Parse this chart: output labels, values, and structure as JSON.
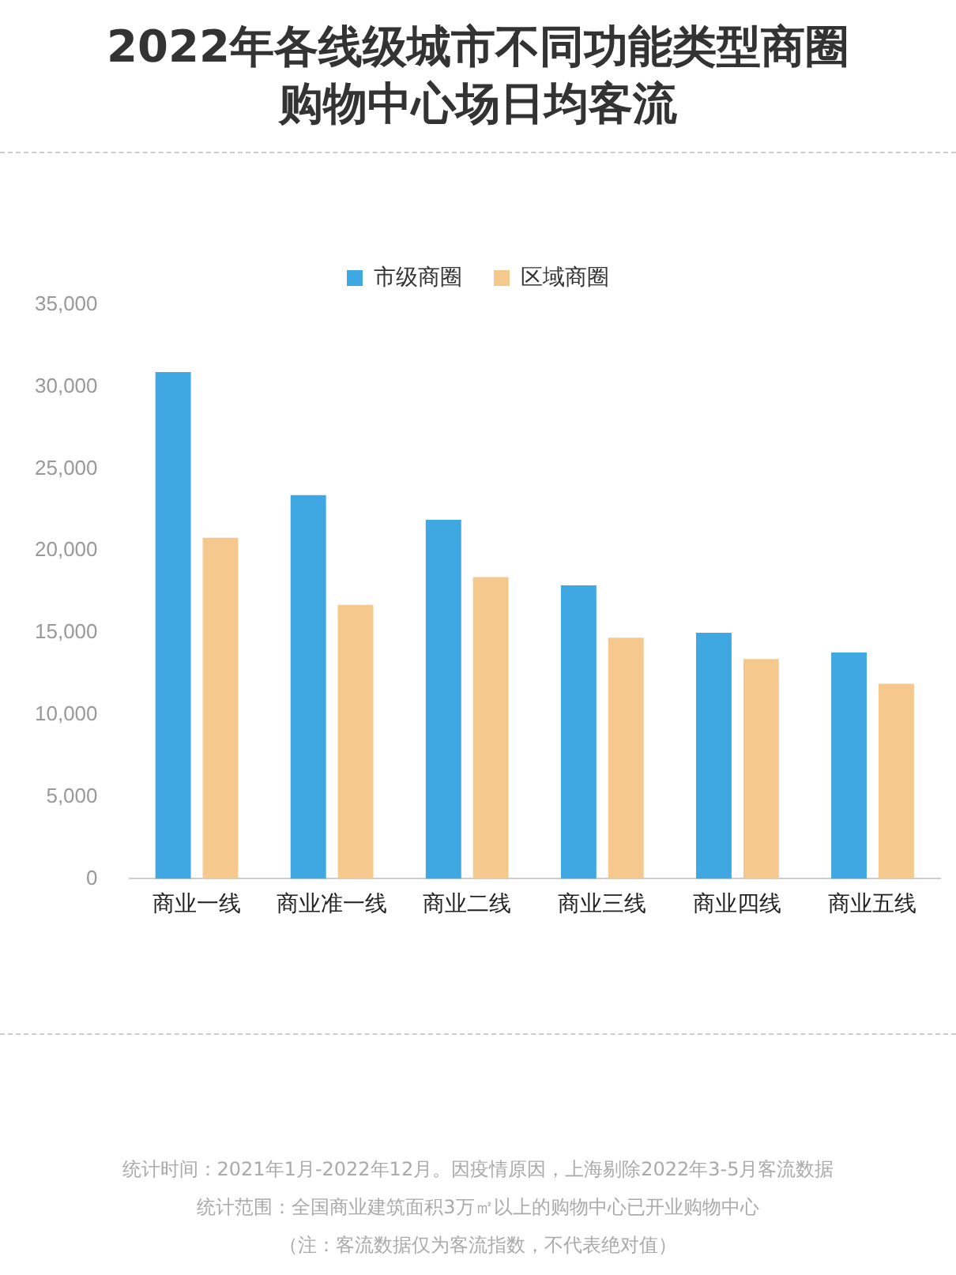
{
  "chart_data": {
    "type": "bar",
    "title": "2022年各线级城市不同功能类型商圈购物中心场日均客流",
    "categories": [
      "商业一线",
      "商业准一线",
      "商业二线",
      "商业三线",
      "商业四线",
      "商业五线"
    ],
    "series": [
      {
        "name": "市级商圈",
        "color": "#3fa7e1",
        "values": [
          30900,
          23400,
          21900,
          17900,
          15000,
          13800
        ]
      },
      {
        "name": "区域商圈",
        "color": "#f5c88e",
        "values": [
          20800,
          16700,
          18400,
          14700,
          13400,
          11900
        ]
      }
    ],
    "ylim": [
      0,
      35000
    ],
    "yticks": [
      0,
      {
        "value": 5000,
        "label": "5,000"
      },
      {
        "value": 10000,
        "label": "10,000"
      },
      {
        "value": 15000,
        "label": "15,000"
      },
      {
        "value": 20000,
        "label": "20,000"
      },
      {
        "value": 25000,
        "label": "25,000"
      },
      {
        "value": 30000,
        "label": "30,000"
      },
      {
        "value": 35000,
        "label": "35,000"
      }
    ],
    "grid": false,
    "legend": "top",
    "annotations": [
      "统计时间：2021年1月-2022年12月。因疫情原因，上海剔除2022年3-5月客流数据",
      "统计范围：全国商业建筑面积3万㎡以上的购物中心已开业购物中心",
      "（注：客流数据仅为客流指数，不代表绝对值）"
    ]
  }
}
